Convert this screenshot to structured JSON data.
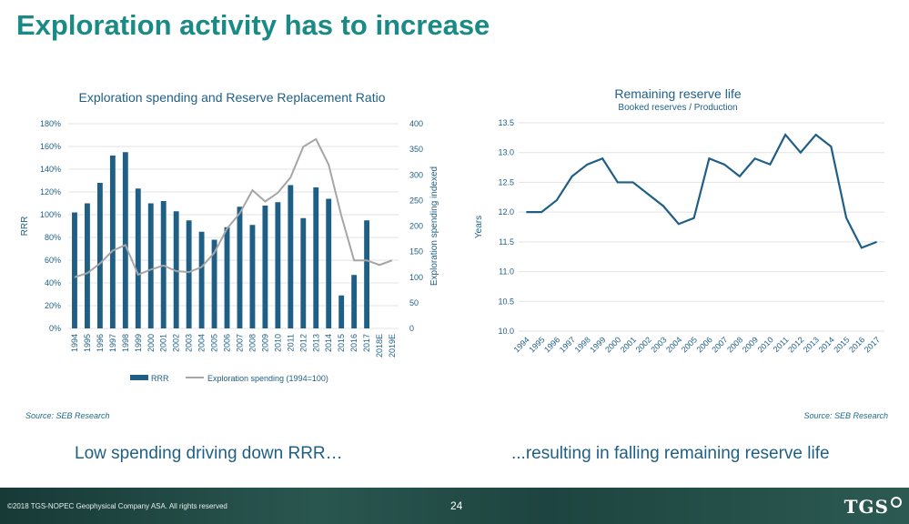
{
  "slide": {
    "title": "Exploration activity has to increase",
    "caption_left": "Low spending driving down RRR…",
    "caption_right": "...resulting in falling remaining reserve life",
    "source_left": "Source: SEB Research",
    "source_right": "Source: SEB Research",
    "footer_copyright": "©2018 TGS-NOPEC Geophysical Company ASA. All rights reserved",
    "page_number": "24",
    "logo_text": "TGS"
  },
  "colors": {
    "bar": "#1f5f86",
    "spending": "#a6a6a6",
    "line": "#1f5f86",
    "title": "#1a8a86",
    "axis_text": "#1f5f86"
  },
  "chart_data": [
    {
      "type": "bar",
      "title": "Exploration spending and Reserve Replacement Ratio",
      "categories": [
        "1994",
        "1995",
        "1996",
        "1997",
        "1998",
        "1999",
        "2000",
        "2001",
        "2002",
        "2003",
        "2004",
        "2005",
        "2006",
        "2007",
        "2008",
        "2009",
        "2010",
        "2011",
        "2012",
        "2013",
        "2014",
        "2015",
        "2016",
        "2017",
        "2018E",
        "2019E"
      ],
      "ylabel": "RRR",
      "y2label": "Exploration spending indexed",
      "ylim": [
        0,
        180
      ],
      "y2lim": [
        0,
        400
      ],
      "yticks": [
        "0%",
        "20%",
        "40%",
        "60%",
        "80%",
        "100%",
        "120%",
        "140%",
        "160%",
        "180%"
      ],
      "y2ticks": [
        "0",
        "50",
        "100",
        "150",
        "200",
        "250",
        "300",
        "350",
        "400"
      ],
      "series": [
        {
          "name": "RRR",
          "type": "bar",
          "axis": "left",
          "values": [
            102,
            110,
            128,
            152,
            155,
            123,
            110,
            112,
            103,
            95,
            85,
            78,
            89,
            107,
            91,
            108,
            111,
            126,
            97,
            124,
            114,
            29,
            47,
            95,
            null,
            null
          ]
        },
        {
          "name": "Exploration spending (1994=100)",
          "type": "line",
          "axis": "right",
          "values": [
            100,
            108,
            127,
            152,
            163,
            105,
            115,
            123,
            112,
            110,
            120,
            148,
            195,
            225,
            270,
            248,
            265,
            295,
            355,
            370,
            320,
            220,
            133,
            133,
            124,
            133
          ]
        }
      ],
      "legend": [
        "RRR",
        "Exploration spending (1994=100)"
      ]
    },
    {
      "type": "line",
      "title": "Remaining reserve life",
      "subtitle": "Booked reserves / Production",
      "ylabel": "Years",
      "ylim": [
        10.0,
        13.5
      ],
      "yticks": [
        "10.0",
        "10.5",
        "11.0",
        "11.5",
        "12.0",
        "12.5",
        "13.0",
        "13.5"
      ],
      "x": [
        "1994",
        "1995",
        "1996",
        "1997",
        "1998",
        "1999",
        "2000",
        "2001",
        "2002",
        "2003",
        "2004",
        "2005",
        "2006",
        "2007",
        "2008",
        "2009",
        "2010",
        "2011",
        "2012",
        "2013",
        "2014",
        "2015",
        "2016",
        "2017"
      ],
      "series": [
        {
          "name": "Remaining reserve life",
          "values": [
            12.0,
            12.0,
            12.2,
            12.6,
            12.8,
            12.9,
            12.5,
            12.5,
            12.3,
            12.1,
            11.8,
            11.9,
            12.9,
            12.8,
            12.6,
            12.9,
            12.8,
            13.3,
            13.0,
            13.3,
            13.1,
            11.9,
            11.4,
            11.5
          ]
        }
      ]
    }
  ]
}
